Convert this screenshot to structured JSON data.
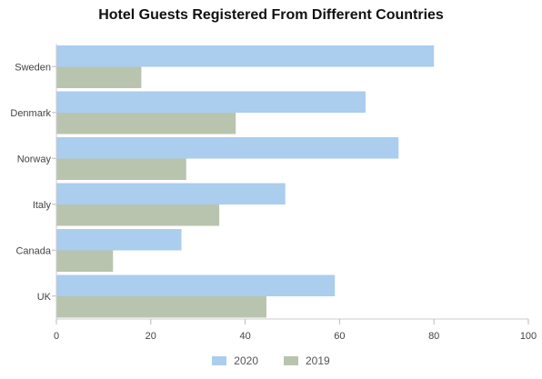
{
  "chart_data": {
    "type": "bar",
    "orientation": "horizontal",
    "title": "Hotel Guests Registered From Different Countries",
    "xlabel": "",
    "ylabel": "",
    "categories": [
      "Sweden",
      "Denmark",
      "Norway",
      "Italy",
      "Canada",
      "UK"
    ],
    "series": [
      {
        "name": "2020",
        "color": "#abcdee",
        "values": [
          80,
          65.5,
          72.5,
          48.5,
          26.5,
          59
        ]
      },
      {
        "name": "2019",
        "color": "#b9c4af",
        "values": [
          18,
          38,
          27.5,
          34.5,
          12,
          44.5
        ]
      }
    ],
    "xlim": [
      0,
      100
    ],
    "xticks": [
      0,
      20,
      40,
      60,
      80,
      100
    ],
    "grid": false,
    "legend_position": "bottom"
  }
}
